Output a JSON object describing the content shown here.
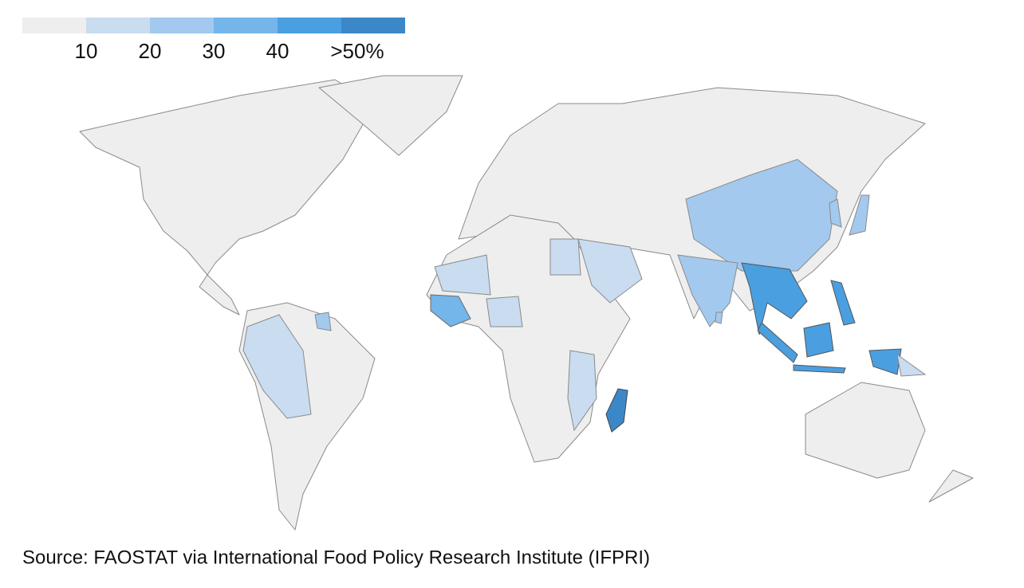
{
  "legend": {
    "colors": [
      "#eeeeee",
      "#c9dcf0",
      "#a3c9ee",
      "#74b5ea",
      "#4a9fe0",
      "#3b87c8"
    ],
    "ticks": [
      10,
      20,
      30,
      40,
      {
        "value": 50,
        "label": ">50%"
      }
    ]
  },
  "source": "Source: FAOSTAT via International Food Policy Research Institute (IFPRI)"
}
